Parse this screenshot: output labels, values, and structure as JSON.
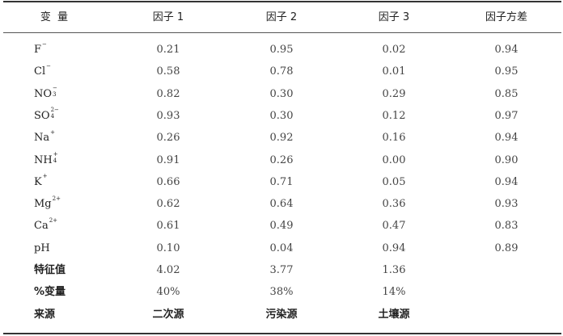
{
  "header": [
    "变 量",
    "因子 1",
    "因子 2",
    "因子 3",
    "因子方差"
  ],
  "rows": [
    {
      "var": {
        "base": "F",
        "sub": "",
        "sup": "−"
      },
      "values": [
        "0.21",
        "0.95",
        "0.02",
        "0.94"
      ]
    },
    {
      "var": {
        "base": "Cl",
        "sub": "",
        "sup": "−"
      },
      "values": [
        "0.58",
        "0.78",
        "0.01",
        "0.95"
      ]
    },
    {
      "var": {
        "base": "NO",
        "sub": "3",
        "sup": "−"
      },
      "values": [
        "0.82",
        "0.30",
        "0.29",
        "0.85"
      ]
    },
    {
      "var": {
        "base": "SO",
        "sub": "4",
        "sup": "2−"
      },
      "values": [
        "0.93",
        "0.30",
        "0.12",
        "0.97"
      ]
    },
    {
      "var": {
        "base": "Na",
        "sub": "",
        "sup": "+"
      },
      "values": [
        "0.26",
        "0.92",
        "0.16",
        "0.94"
      ]
    },
    {
      "var": {
        "base": "NH",
        "sub": "4",
        "sup": "+"
      },
      "values": [
        "0.91",
        "0.26",
        "0.00",
        "0.90"
      ]
    },
    {
      "var": {
        "base": "K",
        "sub": "",
        "sup": "+"
      },
      "values": [
        "0.66",
        "0.71",
        "0.05",
        "0.94"
      ]
    },
    {
      "var": {
        "base": "Mg",
        "sub": "",
        "sup": "2+"
      },
      "values": [
        "0.62",
        "0.64",
        "0.36",
        "0.93"
      ]
    },
    {
      "var": {
        "base": "Ca",
        "sub": "",
        "sup": "2+"
      },
      "values": [
        "0.61",
        "0.49",
        "0.47",
        "0.83"
      ]
    },
    {
      "var": {
        "base": "pH",
        "sub": "",
        "sup": ""
      },
      "values": [
        "0.10",
        "0.04",
        "0.94",
        "0.89"
      ]
    }
  ],
  "summary": [
    {
      "label": "特征值",
      "values": [
        "4.02",
        "3.77",
        "1.36",
        ""
      ]
    },
    {
      "label": "%变量",
      "values": [
        "40%",
        "38%",
        "14%",
        ""
      ]
    },
    {
      "label": "来源",
      "values": [
        "二次源",
        "污染源",
        "土壤源",
        ""
      ],
      "zh": true
    }
  ]
}
